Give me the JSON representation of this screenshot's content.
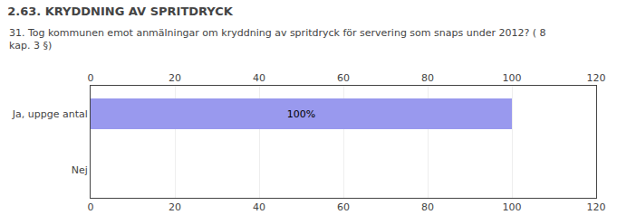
{
  "chart_data": {
    "type": "bar",
    "title": "2.63. KRYDDNING AV SPRITDRYCK",
    "subtitle": "31. Tog kommunen emot anmälningar om kryddning av spritdryck för servering som snaps under 2012? ( 8\nkap. 3 §)",
    "orientation": "horizontal",
    "categories": [
      "Ja, uppge antal",
      "Nej"
    ],
    "values": [
      100,
      0
    ],
    "value_labels": [
      "100%",
      null
    ],
    "data_labels": true,
    "color": "#9999ee",
    "xlim": [
      0,
      120
    ],
    "xticks": [
      0,
      20,
      40,
      60,
      80,
      100,
      120
    ],
    "grid": true
  }
}
